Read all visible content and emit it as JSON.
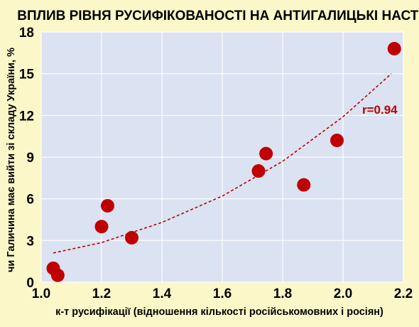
{
  "chart_data": {
    "type": "scatter",
    "title": "ВПЛИВ РІВНЯ РУСИФІКОВАНОСТІ НА АНТИГАЛИЦЬКІ НАСТРОЇ",
    "xlabel": "к-т русифікації (відношення кількості російськомовних і росіян)",
    "ylabel": "чи Галичина має вийти зі складу України, %",
    "xlim": [
      1.0,
      2.2
    ],
    "ylim": [
      0,
      18
    ],
    "xticks": [
      1.0,
      1.2,
      1.4,
      1.6,
      1.8,
      2.0,
      2.2
    ],
    "xtick_labels": [
      "1.0",
      "1.2",
      "1.4",
      "1.6",
      "1.8",
      "2.0",
      "2.2"
    ],
    "yticks": [
      0,
      3,
      6,
      9,
      12,
      15,
      18
    ],
    "ytick_labels": [
      "0",
      "3",
      "6",
      "9",
      "12",
      "15",
      "18"
    ],
    "grid": true,
    "series": [
      {
        "points": [
          {
            "x": 1.04,
            "y": 1.0
          },
          {
            "x": 1.055,
            "y": 0.5
          },
          {
            "x": 1.2,
            "y": 4.0
          },
          {
            "x": 1.22,
            "y": 5.5
          },
          {
            "x": 1.3,
            "y": 3.2
          },
          {
            "x": 1.72,
            "y": 8.0
          },
          {
            "x": 1.745,
            "y": 9.25
          },
          {
            "x": 1.87,
            "y": 7.0
          },
          {
            "x": 1.98,
            "y": 10.2
          },
          {
            "x": 2.17,
            "y": 16.8
          }
        ]
      }
    ],
    "trendline": {
      "kind": "exponential",
      "points": [
        {
          "x": 1.04,
          "y": 2.1
        },
        {
          "x": 1.2,
          "y": 2.85
        },
        {
          "x": 1.4,
          "y": 4.3
        },
        {
          "x": 1.6,
          "y": 6.2
        },
        {
          "x": 1.8,
          "y": 8.7
        },
        {
          "x": 2.0,
          "y": 11.9
        },
        {
          "x": 2.16,
          "y": 15.0
        }
      ]
    },
    "annotation": "r=0.94",
    "colors": {
      "page_background": "#fbf7c8",
      "plot_background": "#dbe2f2",
      "grid": "#ffffff",
      "marker": "#c00000",
      "trendline": "#c00000",
      "annotation": "#c00000"
    }
  }
}
